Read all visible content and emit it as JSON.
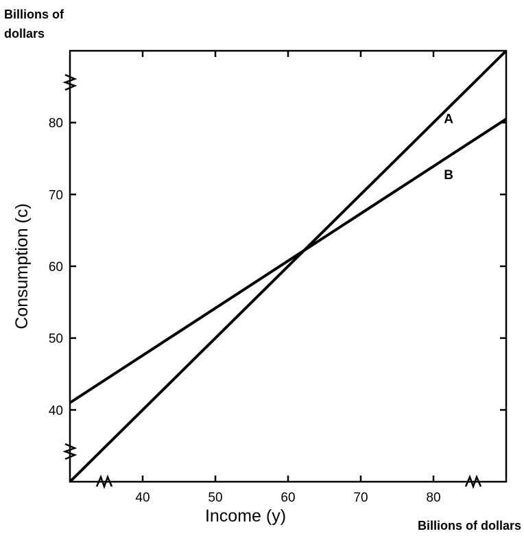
{
  "chart_data": {
    "type": "line",
    "title": "",
    "xlabel": "Income (y)",
    "ylabel": "Consumption (c)",
    "x_unit_label": "Billions of dollars",
    "y_unit_label_line1": "Billions of",
    "y_unit_label_line2": "dollars",
    "xlim": [
      30,
      90
    ],
    "ylim": [
      30,
      90
    ],
    "x_ticks": [
      {
        "value": 40,
        "label": "40"
      },
      {
        "value": 50,
        "label": "50"
      },
      {
        "value": 60,
        "label": "60"
      },
      {
        "value": 70,
        "label": "70"
      },
      {
        "value": 80,
        "label": "80"
      }
    ],
    "y_ticks": [
      {
        "value": 40,
        "label": "40"
      },
      {
        "value": 50,
        "label": "50"
      },
      {
        "value": 60,
        "label": "60"
      },
      {
        "value": 70,
        "label": "70"
      },
      {
        "value": 80,
        "label": "80"
      }
    ],
    "axis_breaks": [
      "x",
      "y"
    ],
    "grid": false,
    "line_color": "#000000",
    "series": [
      {
        "name": "A",
        "x": [
          30,
          90
        ],
        "y": [
          30,
          90
        ]
      },
      {
        "name": "B",
        "x": [
          30,
          90
        ],
        "y": [
          41,
          80.5
        ]
      }
    ]
  }
}
